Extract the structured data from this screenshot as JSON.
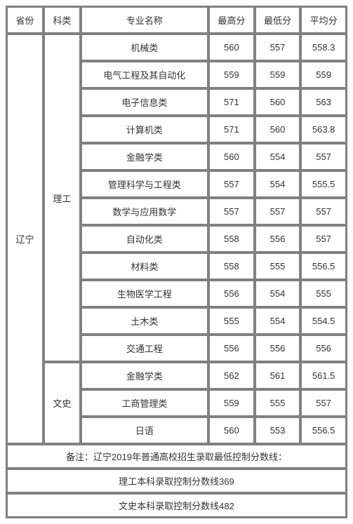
{
  "headers": {
    "province": "省份",
    "category": "科类",
    "major": "专业名称",
    "max_score": "最高分",
    "min_score": "最低分",
    "avg_score": "平均分"
  },
  "province": "辽宁",
  "categories": [
    {
      "name": "理工",
      "rows": [
        {
          "major": "机械类",
          "max": "560",
          "min": "557",
          "avg": "558.3"
        },
        {
          "major": "电气工程及其自动化",
          "max": "559",
          "min": "559",
          "avg": "559"
        },
        {
          "major": "电子信息类",
          "max": "571",
          "min": "560",
          "avg": "563"
        },
        {
          "major": "计算机类",
          "max": "571",
          "min": "560",
          "avg": "563.8"
        },
        {
          "major": "金融学类",
          "max": "560",
          "min": "554",
          "avg": "557"
        },
        {
          "major": "管理科学与工程类",
          "max": "557",
          "min": "554",
          "avg": "555.5"
        },
        {
          "major": "数学与应用数学",
          "max": "557",
          "min": "557",
          "avg": "557"
        },
        {
          "major": "自动化类",
          "max": "558",
          "min": "556",
          "avg": "557"
        },
        {
          "major": "材料类",
          "max": "558",
          "min": "555",
          "avg": "556.5"
        },
        {
          "major": "生物医学工程",
          "max": "556",
          "min": "554",
          "avg": "555"
        },
        {
          "major": "土木类",
          "max": "555",
          "min": "554",
          "avg": "554.5"
        },
        {
          "major": "交通工程",
          "max": "556",
          "min": "556",
          "avg": "556"
        }
      ]
    },
    {
      "name": "文史",
      "rows": [
        {
          "major": "金融学类",
          "max": "562",
          "min": "561",
          "avg": "561.5"
        },
        {
          "major": "工商管理类",
          "max": "559",
          "min": "555",
          "avg": "557"
        },
        {
          "major": "日语",
          "max": "560",
          "min": "553",
          "avg": "556.5"
        }
      ]
    }
  ],
  "notes": {
    "line1": "备注：辽宁2019年普通高校招生录取最低控制分数线：",
    "line2": "理工本科录取控制分数线369",
    "line3": "文史本科录取控制分数线482"
  },
  "styling": {
    "table_border_color": "#808080",
    "cell_bg": "#ffffff",
    "text_color": "#333333",
    "font_size": 13,
    "cell_padding": 8,
    "border_spacing": 2
  }
}
